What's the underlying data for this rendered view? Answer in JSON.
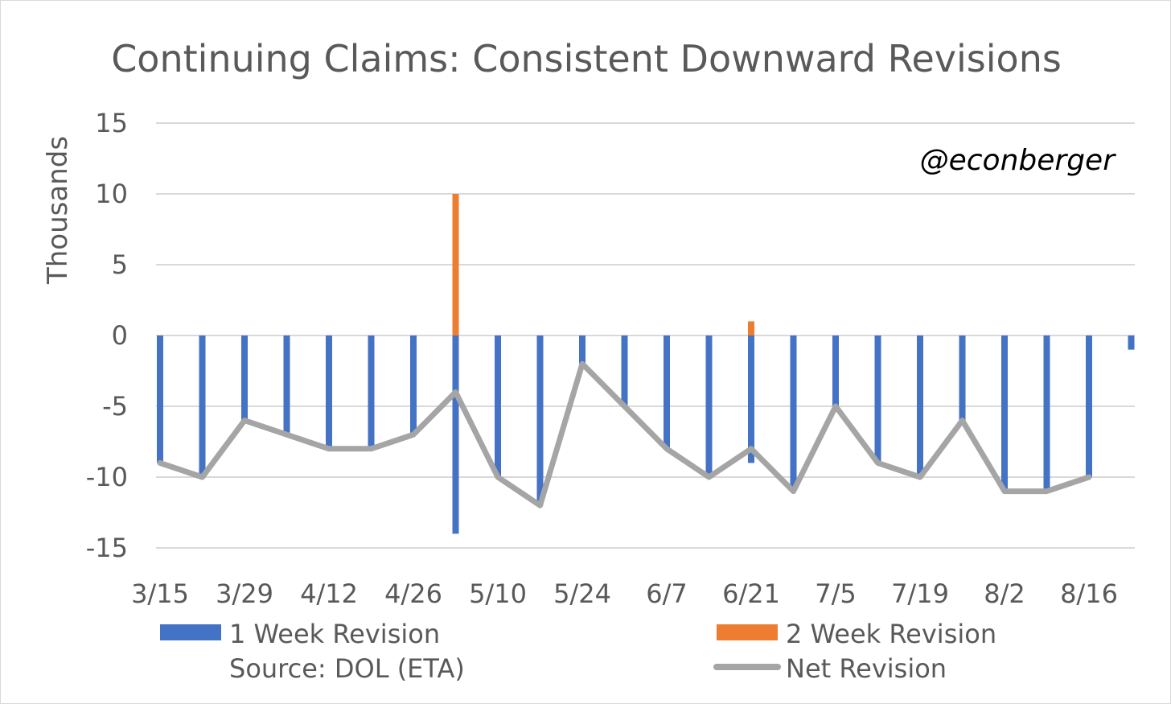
{
  "chart_data": {
    "type": "bar",
    "title": "Continuing Claims: Consistent Downward Revisions",
    "ylabel": "Thousands",
    "xlabel": "",
    "annotation": "@econberger",
    "source": "Source: DOL (ETA)",
    "ylim": [
      -15,
      15
    ],
    "yticks": [
      15,
      10,
      5,
      0,
      -5,
      -10,
      -15
    ],
    "grid": true,
    "legend_position": "bottom",
    "categories": [
      "3/15",
      "3/22",
      "3/29",
      "4/5",
      "4/12",
      "4/19",
      "4/26",
      "5/3",
      "5/10",
      "5/17",
      "5/24",
      "5/31",
      "6/7",
      "6/14",
      "6/21",
      "6/28",
      "7/5",
      "7/12",
      "7/19",
      "7/26",
      "8/2",
      "8/9",
      "8/16",
      "8/23"
    ],
    "xtick_labels": [
      "3/15",
      "3/29",
      "4/12",
      "4/26",
      "5/10",
      "5/24",
      "6/7",
      "6/21",
      "7/5",
      "7/19",
      "8/2",
      "8/16"
    ],
    "series": [
      {
        "name": "1 Week Revision",
        "type": "bar",
        "color": "#4472c4",
        "values": [
          -9,
          -10,
          -6,
          -7,
          -8,
          -8,
          -7,
          -14,
          -10,
          -12,
          -2,
          -5,
          -8,
          -10,
          -9,
          -11,
          -5,
          -9,
          -10,
          -6,
          -11,
          -11,
          -10,
          -1
        ]
      },
      {
        "name": "2 Week Revision",
        "type": "bar",
        "color": "#ed7d31",
        "values": [
          0,
          0,
          0,
          0,
          0,
          0,
          0,
          10,
          0,
          0,
          0,
          0,
          0,
          0,
          1,
          0,
          0,
          0,
          0,
          0,
          0,
          0,
          0,
          null
        ]
      },
      {
        "name": "Net Revision",
        "type": "line",
        "color": "#a5a5a5",
        "values": [
          -9,
          -10,
          -6,
          -7,
          -8,
          -8,
          -7,
          -4,
          -10,
          -12,
          -2,
          -5,
          -8,
          -10,
          -8,
          -11,
          -5,
          -9,
          -10,
          -6,
          -11,
          -11,
          -10,
          null
        ]
      }
    ]
  }
}
